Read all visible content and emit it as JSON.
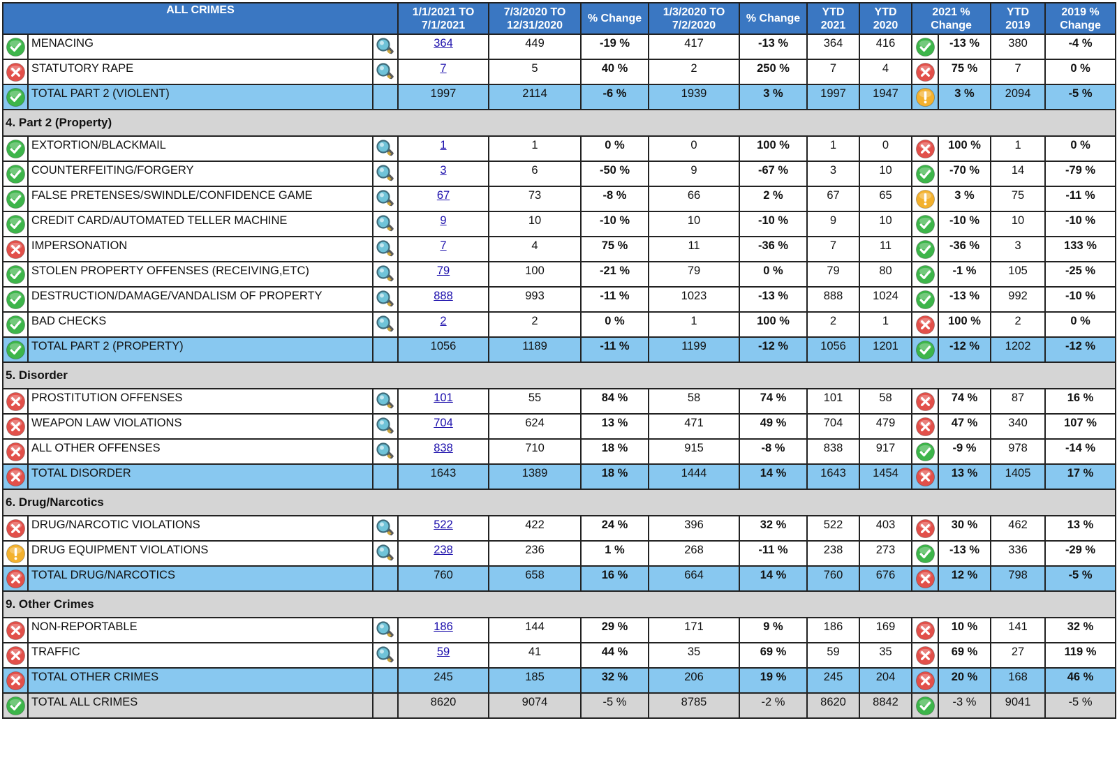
{
  "headers": {
    "crime": "ALL CRIMES",
    "period_current": [
      "1/1/2021 TO",
      "7/1/2021"
    ],
    "period_prev": [
      "7/3/2020 TO",
      "12/31/2020"
    ],
    "pct_change_1": "% Change",
    "period_last_year": [
      "1/3/2020 TO",
      "7/2/2020"
    ],
    "pct_change_2": "% Change",
    "ytd_2021": [
      "YTD",
      "2021"
    ],
    "ytd_2020": [
      "YTD",
      "2020"
    ],
    "change_2021": [
      "2021 %",
      "Change"
    ],
    "ytd_2019": [
      "YTD",
      "2019"
    ],
    "change_2019": [
      "2019 %",
      "Change"
    ]
  },
  "rows": [
    {
      "kind": "data",
      "status": "ok",
      "name": "MENACING",
      "count": "364",
      "prev": "449",
      "pct1": "-19 %",
      "lastyr": "417",
      "pct2": "-13 %",
      "ytd21": "364",
      "ytd20": "416",
      "status2": "ok",
      "chg21": "-13 %",
      "ytd19": "380",
      "chg19": "-4 %"
    },
    {
      "kind": "data",
      "status": "bad",
      "name": "STATUTORY RAPE",
      "count": "7",
      "prev": "5",
      "pct1": "40 %",
      "lastyr": "2",
      "pct2": "250 %",
      "ytd21": "7",
      "ytd20": "4",
      "status2": "bad",
      "chg21": "75 %",
      "ytd19": "7",
      "chg19": "0 %"
    },
    {
      "kind": "total",
      "status": "ok",
      "name": "TOTAL PART 2 (VIOLENT)",
      "count": "1997",
      "prev": "2114",
      "pct1": "-6 %",
      "lastyr": "1939",
      "pct2": "3 %",
      "ytd21": "1997",
      "ytd20": "1947",
      "status2": "warn",
      "chg21": "3 %",
      "ytd19": "2094",
      "chg19": "-5 %"
    },
    {
      "kind": "section",
      "name": "4. Part 2 (Property)"
    },
    {
      "kind": "data",
      "status": "ok",
      "name": "EXTORTION/BLACKMAIL",
      "count": "1",
      "prev": "1",
      "pct1": "0 %",
      "lastyr": "0",
      "pct2": "100 %",
      "ytd21": "1",
      "ytd20": "0",
      "status2": "bad",
      "chg21": "100 %",
      "ytd19": "1",
      "chg19": "0 %"
    },
    {
      "kind": "data",
      "status": "ok",
      "name": "COUNTERFEITING/FORGERY",
      "count": "3",
      "prev": "6",
      "pct1": "-50 %",
      "lastyr": "9",
      "pct2": "-67 %",
      "ytd21": "3",
      "ytd20": "10",
      "status2": "ok",
      "chg21": "-70 %",
      "ytd19": "14",
      "chg19": "-79 %"
    },
    {
      "kind": "data",
      "status": "ok",
      "name": "FALSE PRETENSES/SWINDLE/CONFIDENCE GAME",
      "count": "67",
      "prev": "73",
      "pct1": "-8 %",
      "lastyr": "66",
      "pct2": "2 %",
      "ytd21": "67",
      "ytd20": "65",
      "status2": "warn",
      "chg21": "3 %",
      "ytd19": "75",
      "chg19": "-11 %"
    },
    {
      "kind": "data",
      "status": "ok",
      "name": "CREDIT CARD/AUTOMATED TELLER MACHINE",
      "count": "9",
      "prev": "10",
      "pct1": "-10 %",
      "lastyr": "10",
      "pct2": "-10 %",
      "ytd21": "9",
      "ytd20": "10",
      "status2": "ok",
      "chg21": "-10 %",
      "ytd19": "10",
      "chg19": "-10 %"
    },
    {
      "kind": "data",
      "status": "bad",
      "name": "IMPERSONATION",
      "count": "7",
      "prev": "4",
      "pct1": "75 %",
      "lastyr": "11",
      "pct2": "-36 %",
      "ytd21": "7",
      "ytd20": "11",
      "status2": "ok",
      "chg21": "-36 %",
      "ytd19": "3",
      "chg19": "133 %"
    },
    {
      "kind": "data",
      "status": "ok",
      "name": "STOLEN PROPERTY OFFENSES (RECEIVING,ETC)",
      "count": "79",
      "prev": "100",
      "pct1": "-21 %",
      "lastyr": "79",
      "pct2": "0 %",
      "ytd21": "79",
      "ytd20": "80",
      "status2": "ok",
      "chg21": "-1 %",
      "ytd19": "105",
      "chg19": "-25 %"
    },
    {
      "kind": "data",
      "status": "ok",
      "name": "DESTRUCTION/DAMAGE/VANDALISM OF PROPERTY",
      "count": "888",
      "prev": "993",
      "pct1": "-11 %",
      "lastyr": "1023",
      "pct2": "-13 %",
      "ytd21": "888",
      "ytd20": "1024",
      "status2": "ok",
      "chg21": "-13 %",
      "ytd19": "992",
      "chg19": "-10 %"
    },
    {
      "kind": "data",
      "status": "ok",
      "name": "BAD CHECKS",
      "count": "2",
      "prev": "2",
      "pct1": "0 %",
      "lastyr": "1",
      "pct2": "100 %",
      "ytd21": "2",
      "ytd20": "1",
      "status2": "bad",
      "chg21": "100 %",
      "ytd19": "2",
      "chg19": "0 %"
    },
    {
      "kind": "total",
      "status": "ok",
      "name": "TOTAL PART 2 (PROPERTY)",
      "count": "1056",
      "prev": "1189",
      "pct1": "-11 %",
      "lastyr": "1199",
      "pct2": "-12 %",
      "ytd21": "1056",
      "ytd20": "1201",
      "status2": "ok",
      "chg21": "-12 %",
      "ytd19": "1202",
      "chg19": "-12 %"
    },
    {
      "kind": "section",
      "name": "5. Disorder"
    },
    {
      "kind": "data",
      "status": "bad",
      "name": "PROSTITUTION OFFENSES",
      "count": "101",
      "prev": "55",
      "pct1": "84 %",
      "lastyr": "58",
      "pct2": "74 %",
      "ytd21": "101",
      "ytd20": "58",
      "status2": "bad",
      "chg21": "74 %",
      "ytd19": "87",
      "chg19": "16 %"
    },
    {
      "kind": "data",
      "status": "bad",
      "name": "WEAPON LAW VIOLATIONS",
      "count": "704",
      "prev": "624",
      "pct1": "13 %",
      "lastyr": "471",
      "pct2": "49 %",
      "ytd21": "704",
      "ytd20": "479",
      "status2": "bad",
      "chg21": "47 %",
      "ytd19": "340",
      "chg19": "107 %"
    },
    {
      "kind": "data",
      "status": "bad",
      "name": "ALL OTHER OFFENSES",
      "count": "838",
      "prev": "710",
      "pct1": "18 %",
      "lastyr": "915",
      "pct2": "-8 %",
      "ytd21": "838",
      "ytd20": "917",
      "status2": "ok",
      "chg21": "-9 %",
      "ytd19": "978",
      "chg19": "-14 %"
    },
    {
      "kind": "total",
      "status": "bad",
      "name": "TOTAL DISORDER",
      "count": "1643",
      "prev": "1389",
      "pct1": "18 %",
      "lastyr": "1444",
      "pct2": "14 %",
      "ytd21": "1643",
      "ytd20": "1454",
      "status2": "bad",
      "chg21": "13 %",
      "ytd19": "1405",
      "chg19": "17 %"
    },
    {
      "kind": "section",
      "name": "6. Drug/Narcotics"
    },
    {
      "kind": "data",
      "status": "bad",
      "name": "DRUG/NARCOTIC VIOLATIONS",
      "count": "522",
      "prev": "422",
      "pct1": "24 %",
      "lastyr": "396",
      "pct2": "32 %",
      "ytd21": "522",
      "ytd20": "403",
      "status2": "bad",
      "chg21": "30 %",
      "ytd19": "462",
      "chg19": "13 %"
    },
    {
      "kind": "data",
      "status": "warn",
      "name": "DRUG EQUIPMENT VIOLATIONS",
      "count": "238",
      "prev": "236",
      "pct1": "1 %",
      "lastyr": "268",
      "pct2": "-11 %",
      "ytd21": "238",
      "ytd20": "273",
      "status2": "ok",
      "chg21": "-13 %",
      "ytd19": "336",
      "chg19": "-29 %"
    },
    {
      "kind": "total",
      "status": "bad",
      "name": "TOTAL DRUG/NARCOTICS",
      "count": "760",
      "prev": "658",
      "pct1": "16 %",
      "lastyr": "664",
      "pct2": "14 %",
      "ytd21": "760",
      "ytd20": "676",
      "status2": "bad",
      "chg21": "12 %",
      "ytd19": "798",
      "chg19": "-5 %"
    },
    {
      "kind": "section",
      "name": "9. Other Crimes"
    },
    {
      "kind": "data",
      "status": "bad",
      "name": "NON-REPORTABLE",
      "count": "186",
      "prev": "144",
      "pct1": "29 %",
      "lastyr": "171",
      "pct2": "9 %",
      "ytd21": "186",
      "ytd20": "169",
      "status2": "bad",
      "chg21": "10 %",
      "ytd19": "141",
      "chg19": "32 %"
    },
    {
      "kind": "data",
      "status": "bad",
      "name": "TRAFFIC",
      "count": "59",
      "prev": "41",
      "pct1": "44 %",
      "lastyr": "35",
      "pct2": "69 %",
      "ytd21": "59",
      "ytd20": "35",
      "status2": "bad",
      "chg21": "69 %",
      "ytd19": "27",
      "chg19": "119 %"
    },
    {
      "kind": "total",
      "status": "bad",
      "name": "TOTAL OTHER CRIMES",
      "count": "245",
      "prev": "185",
      "pct1": "32 %",
      "lastyr": "206",
      "pct2": "19 %",
      "ytd21": "245",
      "ytd20": "204",
      "status2": "bad",
      "chg21": "20 %",
      "ytd19": "168",
      "chg19": "46 %"
    },
    {
      "kind": "grand",
      "status": "ok",
      "name": "TOTAL ALL CRIMES",
      "count": "8620",
      "prev": "9074",
      "pct1": "-5 %",
      "lastyr": "8785",
      "pct2": "-2 %",
      "ytd21": "8620",
      "ytd20": "8842",
      "status2": "ok",
      "chg21": "-3 %",
      "ytd19": "9041",
      "chg19": "-5 %"
    }
  ],
  "icons": {
    "ok": "check-circle-icon",
    "bad": "x-circle-icon",
    "warn": "exclamation-circle-icon",
    "detail": "magnifier-icon"
  },
  "colors": {
    "header_bg": "#3a77c2",
    "total_bg": "#88c8f0",
    "section_bg": "#d5d5d5",
    "ok": "#3db54a",
    "bad": "#e2504a",
    "warn": "#f3b12e",
    "link": "#1a0dab"
  }
}
